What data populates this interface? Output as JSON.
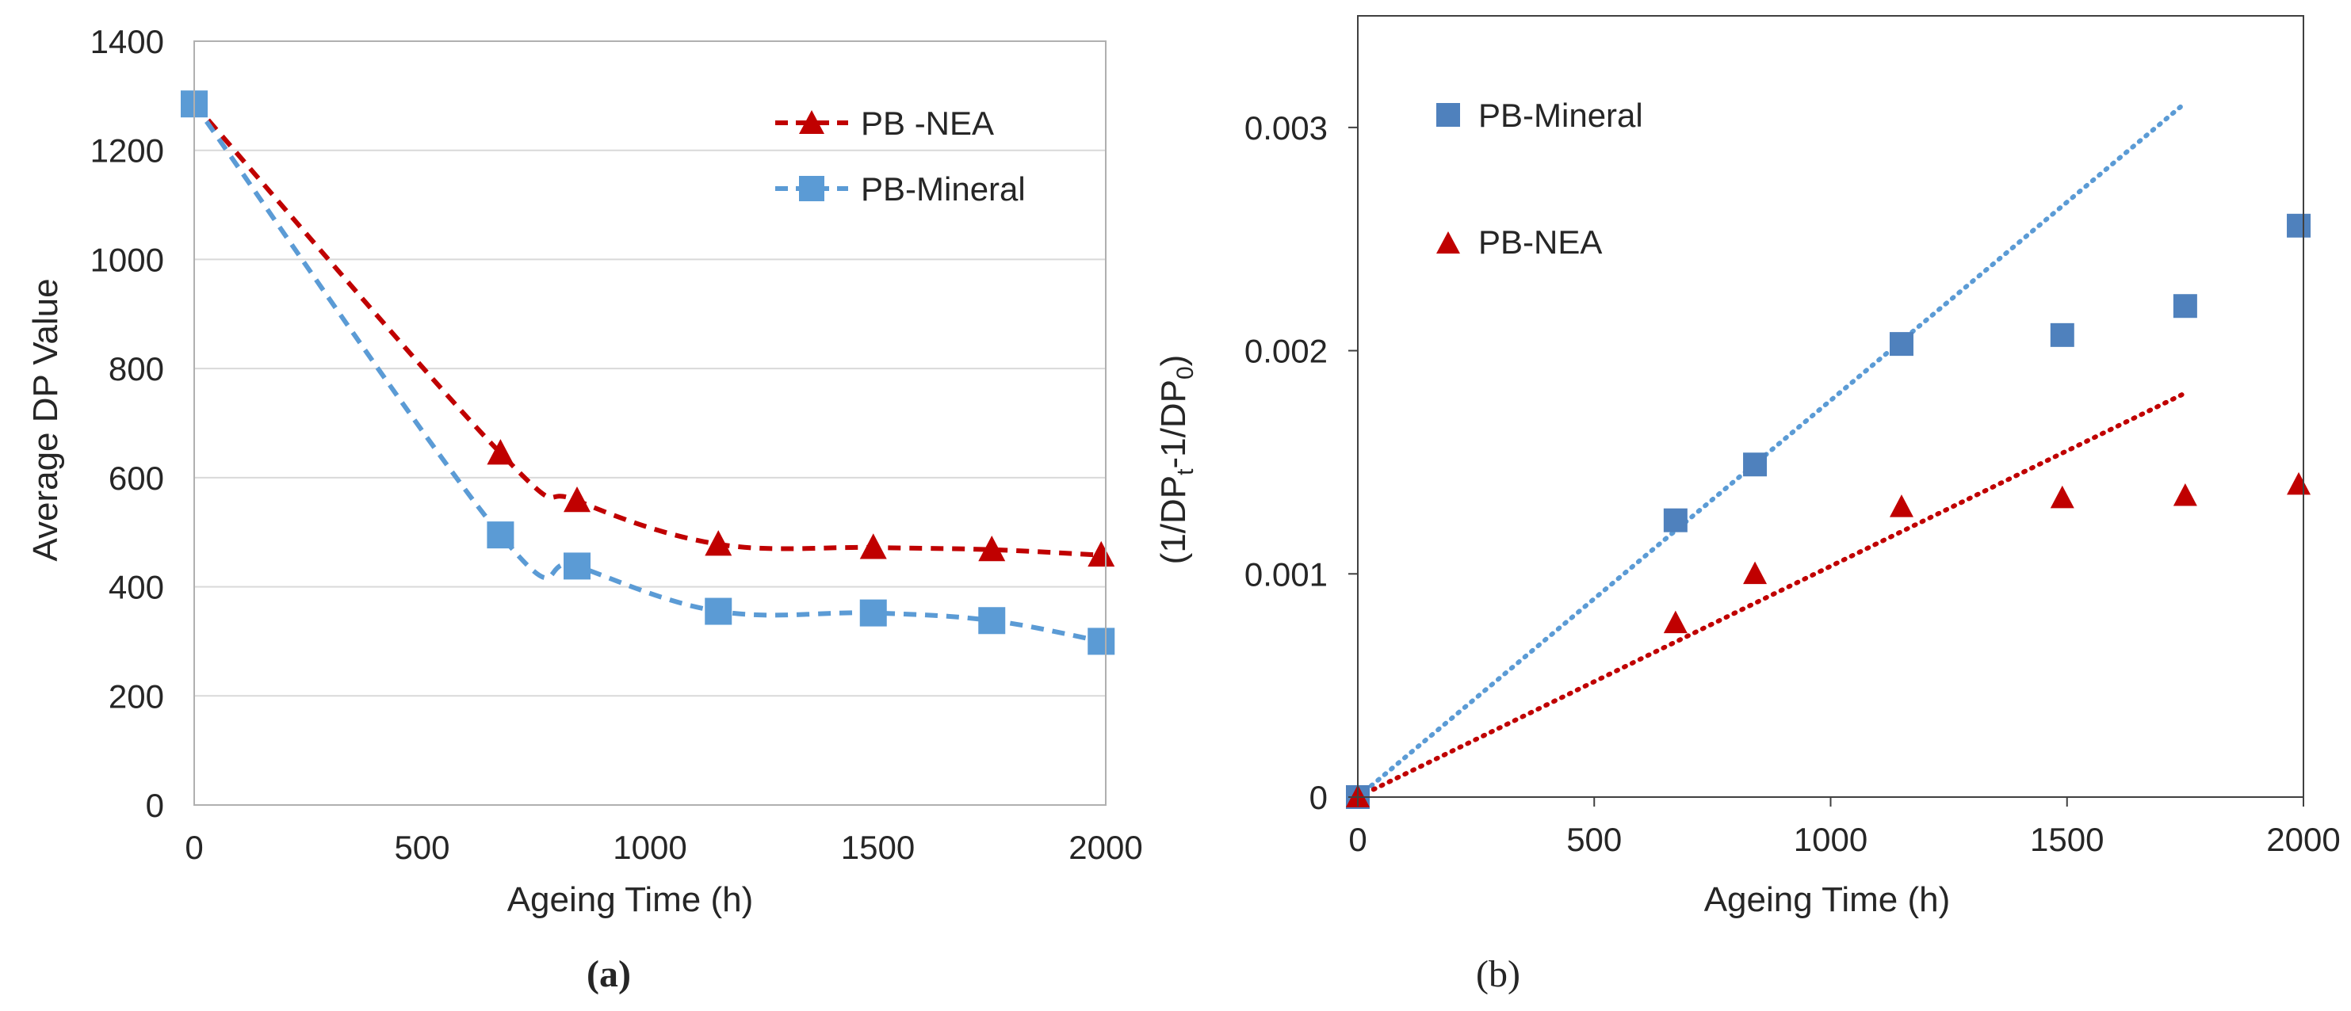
{
  "chart_data": [
    {
      "id": "a",
      "type": "line",
      "caption": "(a)",
      "xlabel": "Ageing Time (h)",
      "ylabel": "Average DP Value",
      "xlim": [
        0,
        2000
      ],
      "ylim": [
        0,
        1400
      ],
      "xticks": [
        0,
        500,
        1000,
        1500,
        2000
      ],
      "yticks": [
        0,
        200,
        400,
        600,
        800,
        1000,
        1200,
        1400
      ],
      "grid": "horizontal",
      "legend_position": "top-right",
      "series": [
        {
          "name": "PB -NEA",
          "color": "#c00000",
          "marker": "triangle",
          "line": "dashed",
          "x": [
            0,
            672,
            840,
            1150,
            1490,
            1750,
            1990
          ],
          "y": [
            1285,
            645,
            558,
            478,
            472,
            468,
            458
          ]
        },
        {
          "name": "PB-Mineral",
          "color": "#5b9bd5",
          "marker": "square",
          "line": "dashed",
          "x": [
            0,
            672,
            840,
            1150,
            1490,
            1750,
            1990
          ],
          "y": [
            1285,
            495,
            438,
            355,
            352,
            338,
            300
          ]
        }
      ]
    },
    {
      "id": "b",
      "type": "scatter",
      "caption": "(b)",
      "xlabel": "Ageing Time (h)",
      "ylabel_main": "(1/DP",
      "ylabel_sub_t": "t",
      "ylabel_mid": "-1/DP",
      "ylabel_sub_0": "0",
      "ylabel_end": ")",
      "xlim": [
        0,
        2000
      ],
      "ylim": [
        0,
        0.0035
      ],
      "xticks": [
        0,
        500,
        1000,
        1500,
        2000
      ],
      "yticks": [
        0,
        0.001,
        0.002,
        0.003
      ],
      "ytick_labels": [
        "0",
        "0.001",
        "0.002",
        "0.003"
      ],
      "grid": "none",
      "legend_position": "top-left",
      "series": [
        {
          "name": "PB-Mineral",
          "color": "#4f81bd",
          "marker": "square",
          "x": [
            0,
            672,
            840,
            1150,
            1490,
            1750,
            1990
          ],
          "y": [
            0,
            0.00124,
            0.00149,
            0.00203,
            0.00207,
            0.0022,
            0.00256
          ],
          "trendline": {
            "style": "dotted",
            "color": "#5b9bd5",
            "x": [
              0,
              1750
            ],
            "y": [
              0,
              0.00311
            ]
          }
        },
        {
          "name": "PB-NEA",
          "color": "#c00000",
          "marker": "triangle",
          "x": [
            0,
            672,
            840,
            1150,
            1490,
            1750,
            1990
          ],
          "y": [
            0,
            0.00078,
            0.001,
            0.0013,
            0.00134,
            0.00135,
            0.0014
          ],
          "trendline": {
            "style": "dotted",
            "color": "#c00000",
            "x": [
              0,
              1750
            ],
            "y": [
              0,
              0.00181
            ]
          }
        }
      ]
    }
  ]
}
